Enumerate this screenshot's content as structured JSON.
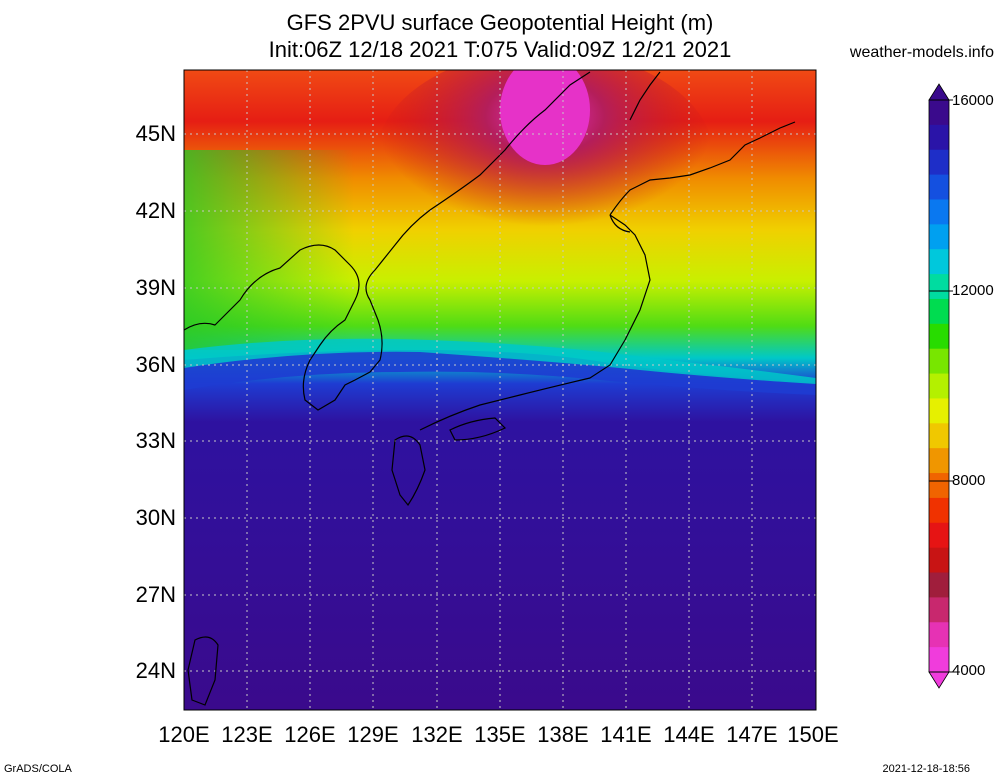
{
  "title_line1": "GFS 2PVU surface Geopotential Height (m)",
  "title_line2": "Init:06Z 12/18 2021 T:075 Valid:09Z 12/21 2021",
  "site": "weather-models.info",
  "lat_labels": [
    "45N",
    "42N",
    "39N",
    "36N",
    "33N",
    "30N",
    "27N",
    "24N"
  ],
  "lon_labels": [
    "120E",
    "123E",
    "126E",
    "129E",
    "132E",
    "135E",
    "138E",
    "141E",
    "144E",
    "147E",
    "150E"
  ],
  "colorbar": {
    "labels": [
      "16000",
      "12000",
      "8000",
      "4000"
    ],
    "colors": [
      "#3a0a8c",
      "#2a14a8",
      "#1e2ec8",
      "#1450e0",
      "#0a78f0",
      "#00a0f0",
      "#00c8dc",
      "#00dca0",
      "#00dc50",
      "#28dc00",
      "#78e600",
      "#b4f000",
      "#e6f000",
      "#f0c800",
      "#f09600",
      "#f06400",
      "#f03200",
      "#e61414",
      "#c81414",
      "#a01e3c",
      "#c8286e",
      "#e632b4",
      "#f03cdc"
    ]
  },
  "footer_left": "GrADS/COLA",
  "footer_right": "2021-12-18-18:56"
}
